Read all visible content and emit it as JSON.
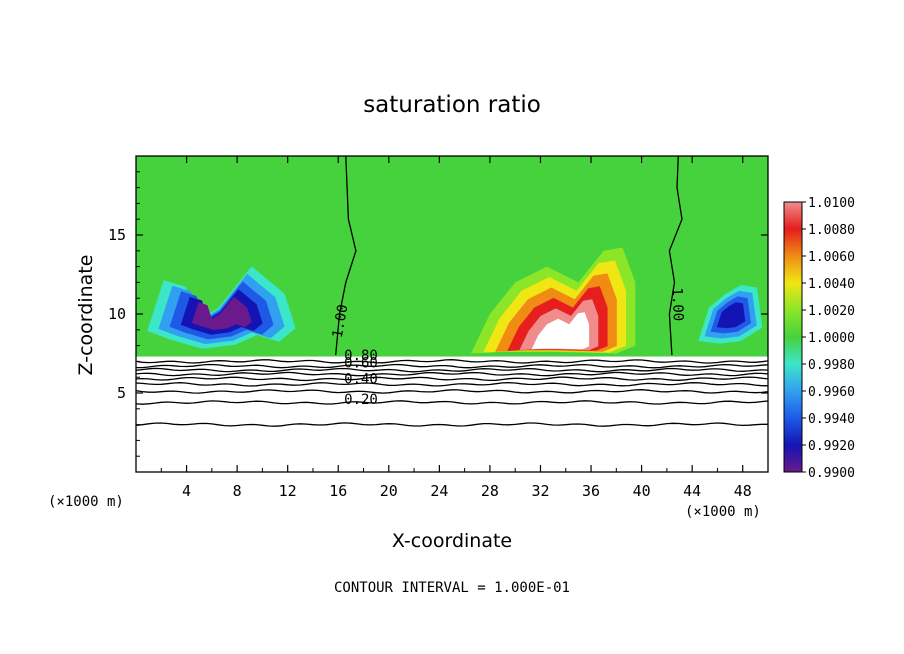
{
  "chart_data": {
    "type": "heatmap",
    "title": "saturation ratio",
    "xlabel": "X-coordinate",
    "ylabel": "Z-coordinate",
    "x_unit_left": "(×1000 m)",
    "x_unit_right": "(×1000 m)",
    "footer": "CONTOUR INTERVAL = 1.000E-01",
    "xlim": [
      0,
      50
    ],
    "ylim": [
      0,
      20
    ],
    "x_ticks": [
      4,
      8,
      12,
      16,
      20,
      24,
      28,
      32,
      36,
      40,
      44,
      48
    ],
    "y_ticks": [
      5,
      10,
      15
    ],
    "colorbar": {
      "levels": [
        0.99,
        0.992,
        0.994,
        0.996,
        0.998,
        1.0,
        1.002,
        1.004,
        1.006,
        1.008,
        1.01
      ],
      "labels": [
        "0.9900",
        "0.9920",
        "0.9940",
        "0.9960",
        "0.9980",
        "1.0000",
        "1.0020",
        "1.0040",
        "1.0060",
        "1.0080",
        "1.0100"
      ],
      "colors": [
        "#6a1a8c",
        "#1414b4",
        "#1e5ae6",
        "#32a0f0",
        "#3ce6c8",
        "#46d23c",
        "#8ce628",
        "#f0e614",
        "#f08c14",
        "#e61e1e",
        "#f08c8c"
      ]
    },
    "cloud_region": {
      "z_min": 7.3,
      "z_max": 20,
      "background_level": 1.0
    },
    "contour_lines": {
      "interval": 0.1,
      "labels": [
        {
          "text": "1.00",
          "x": 16.5,
          "z": 9.5,
          "rotate": -80
        },
        {
          "text": "1.00",
          "x": 42.5,
          "z": 10.6,
          "rotate": 88
        },
        {
          "text": "0.80",
          "x": 17.8,
          "z": 7.1,
          "rotate": 0
        },
        {
          "text": "0.60",
          "x": 17.8,
          "z": 6.6,
          "rotate": 0
        },
        {
          "text": "0.40",
          "x": 17.8,
          "z": 5.6,
          "rotate": 0
        },
        {
          "text": "0.20",
          "x": 17.8,
          "z": 4.3,
          "rotate": 0
        }
      ],
      "lower_levels_z": [
        7.0,
        6.7,
        6.45,
        6.2,
        5.9,
        5.55,
        5.1,
        4.4,
        3.0
      ]
    },
    "blobs": [
      {
        "name": "left-dry-lobe",
        "level": 0.993,
        "path": [
          [
            0,
            8.8
          ],
          [
            1.5,
            12.5
          ],
          [
            3.5,
            12
          ],
          [
            4.5,
            9.5
          ],
          [
            6.5,
            10.5
          ],
          [
            9.5,
            13.5
          ],
          [
            12.5,
            11.5
          ],
          [
            13.5,
            9
          ],
          [
            12,
            8
          ],
          [
            10,
            8.5
          ],
          [
            8,
            7.8
          ],
          [
            5,
            7.5
          ],
          [
            2,
            8.2
          ]
        ]
      },
      {
        "name": "right-dry-lobe",
        "level": 0.9935,
        "path": [
          [
            44,
            8
          ],
          [
            45,
            10.5
          ],
          [
            46.5,
            11.5
          ],
          [
            48,
            12.2
          ],
          [
            49.5,
            12
          ],
          [
            50,
            9
          ],
          [
            48,
            8
          ],
          [
            46,
            7.8
          ]
        ]
      },
      {
        "name": "moist-core",
        "level": 1.0075,
        "path": [
          [
            26.5,
            7.5
          ],
          [
            28,
            10
          ],
          [
            30,
            12
          ],
          [
            32.5,
            13
          ],
          [
            35,
            12
          ],
          [
            37,
            14
          ],
          [
            38.5,
            14.2
          ],
          [
            39.5,
            12
          ],
          [
            39.5,
            8
          ],
          [
            38,
            7.5
          ],
          [
            33,
            7.6
          ],
          [
            29,
            7.6
          ]
        ]
      }
    ]
  }
}
